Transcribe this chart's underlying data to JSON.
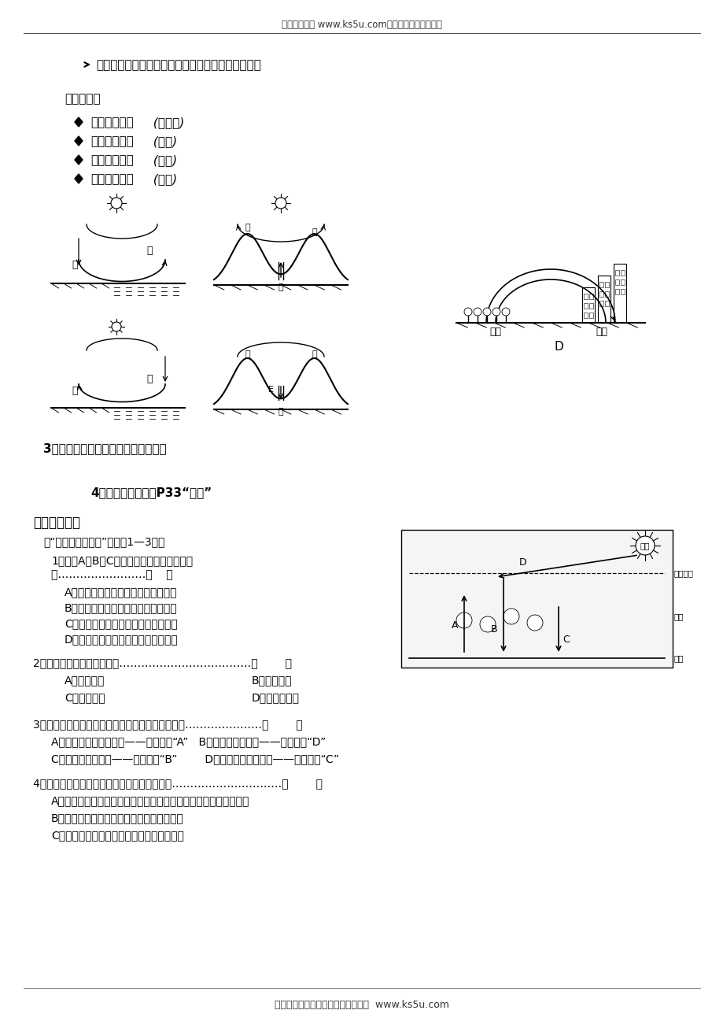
{
  "header_text": "高考资源网（ www.ks5u.com），您身边的高考专家",
  "footer_text": "欢迎广大教师踊跃来稿，稿酬丰厚。  www.ks5u.com",
  "section1_bullet": "同一等压面，气压值相等，凸起为高压，凹下为低压",
  "tips_title": "技巧点拨：",
  "tips_main": [
    "一知气温高低",
    "二判气流升降",
    "三推气压高低",
    "四定气流流向"
  ],
  "tips_italic": [
    " (近地面)",
    " (垂直)",
    " (垂直)",
    " (水平)"
  ],
  "question3": "3、给下列各热力环流加上适当的箭头",
  "question4": "4、探究：处理教材P33“活动”",
  "section3_title": "三、随堂巩固",
  "read_text": "读“大气受热过程图”，回答1—3题。",
  "q1_line1": "1．图中A、B、C三个箭头所表示的辐射依次",
  "q1_line2": "是……………………（    ）",
  "q1_options": [
    "A．大气逆辐射、地面辐射、太阳辐射",
    "B．太阳辐射、地面辐射、大气逆辐射",
    "C．地面辐射、大气逆辐射、太阳辐射",
    "D．太阳辐射、大气逆辐射、地面辐射"
  ],
  "q2_text": "2．大气主要的直接的热源是………………………………（        ）",
  "q2_options_left": [
    "A．地面辐射",
    "C．大气辐射"
  ],
  "q2_options_right": [
    "B．太阳辐射",
    "D．大气逆辐射"
  ],
  "q3_text": "3．大气对地面的保温作用和图中对应的字母主要是…………………（        ）",
  "q3_options": [
    "A．到达地面的太阳辐射——图中字母“A”   B．大气的反射作用——图中字母“D”",
    "C．大气的吸收作用——图中字母“B”        D．大气的逆辐射作用——图中字母“C”"
  ],
  "q4_text": "4．下列选项有关热力环流的叙述，不正确的是…………………………（        ）",
  "q4_options": [
    "A．近地面热的地方，高空形成了高压，冷的地方，高空形成了高压",
    "B．同一垂直面，近地面气压与高空气压相反",
    "C．同一垂直面，近地面的气总比高空气压高"
  ],
  "bg_color": "#ffffff",
  "text_color": "#000000",
  "line_color": "#333333"
}
